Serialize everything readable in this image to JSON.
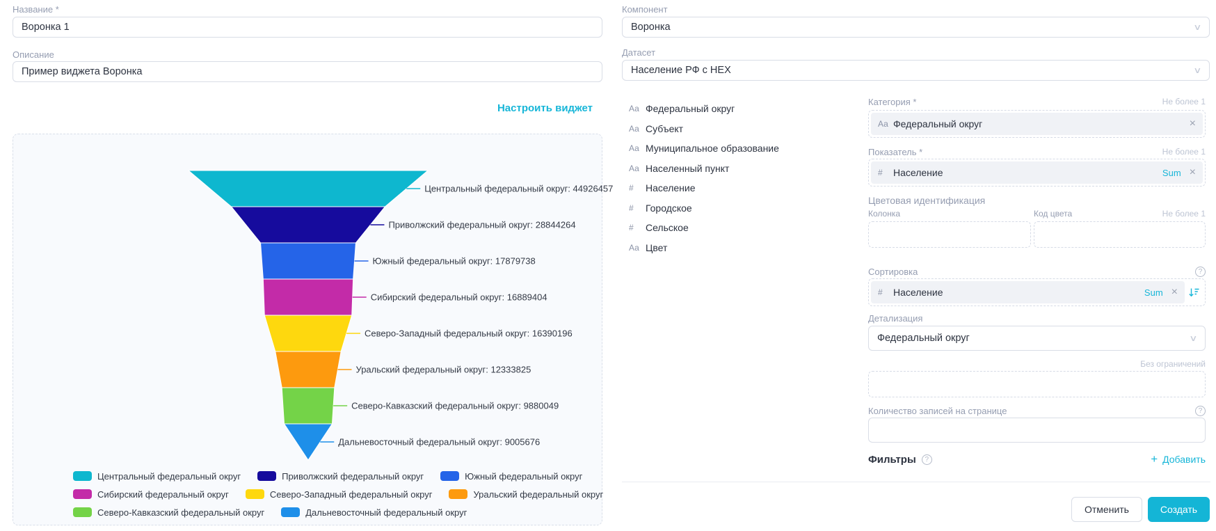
{
  "accent": "#17b6d8",
  "left": {
    "name_label": "Название *",
    "name_value": "Воронка 1",
    "description_label": "Описание",
    "description_value": "Пример виджета Воронка",
    "configure_link": "Настроить виджет"
  },
  "chart_data": {
    "type": "funnel",
    "title": "",
    "label_format": "{name}: {value}",
    "legend_position": "bottom-left",
    "legend_rows": [
      3,
      3,
      2
    ],
    "items": [
      {
        "label": "Центральный федеральный округ",
        "value": 44926457,
        "color": "#0eb7cf"
      },
      {
        "label": "Приволжский федеральный округ",
        "value": 28844264,
        "color": "#160b9d"
      },
      {
        "label": "Южный федеральный округ",
        "value": 17879738,
        "color": "#2564e8"
      },
      {
        "label": "Сибирский федеральный округ",
        "value": 16889404,
        "color": "#c32ba8"
      },
      {
        "label": "Северо-Западный федеральный округ",
        "value": 16390196,
        "color": "#fed80e"
      },
      {
        "label": "Уральский федеральный округ",
        "value": 12333825,
        "color": "#fd9a0e"
      },
      {
        "label": "Северо-Кавказский федеральный округ",
        "value": 9880049,
        "color": "#74d348"
      },
      {
        "label": "Дальневосточный федеральный округ",
        "value": 9005676,
        "color": "#1e8fe9"
      }
    ]
  },
  "right": {
    "component_label": "Компонент",
    "component_value": "Воронка",
    "dataset_label": "Датасет",
    "dataset_value": "Население РФ с НЕХ",
    "fields": [
      {
        "type": "Аа",
        "name": "Федеральный округ"
      },
      {
        "type": "Аа",
        "name": "Субъект"
      },
      {
        "type": "Аа",
        "name": "Муниципальное образование"
      },
      {
        "type": "Аа",
        "name": "Населенный пункт"
      },
      {
        "type": "#",
        "name": "Население"
      },
      {
        "type": "#",
        "name": "Городское"
      },
      {
        "type": "#",
        "name": "Сельское"
      },
      {
        "type": "Аа",
        "name": "Цвет"
      }
    ],
    "category": {
      "label": "Категория *",
      "limit": "Не более 1",
      "chip_icon": "Аа",
      "chip_text": "Федеральный округ"
    },
    "measure": {
      "label": "Показатель *",
      "limit": "Не более 1",
      "chip_icon": "#",
      "chip_text": "Население",
      "agg": "Sum"
    },
    "color_ident": {
      "label": "Цветовая идентификация",
      "col_label": "Колонка",
      "code_label": "Код цвета",
      "limit": "Не более 1"
    },
    "sorting": {
      "label": "Сортировка",
      "chip_icon": "#",
      "chip_text": "Население",
      "agg": "Sum"
    },
    "detail": {
      "label": "Детализация",
      "value": "Федеральный округ"
    },
    "no_limit_label": "Без ограничений",
    "page_size_label": "Количество записей на странице",
    "filters_label": "Фильтры",
    "add_label": "Добавить",
    "cancel_label": "Отменить",
    "create_label": "Создать"
  }
}
